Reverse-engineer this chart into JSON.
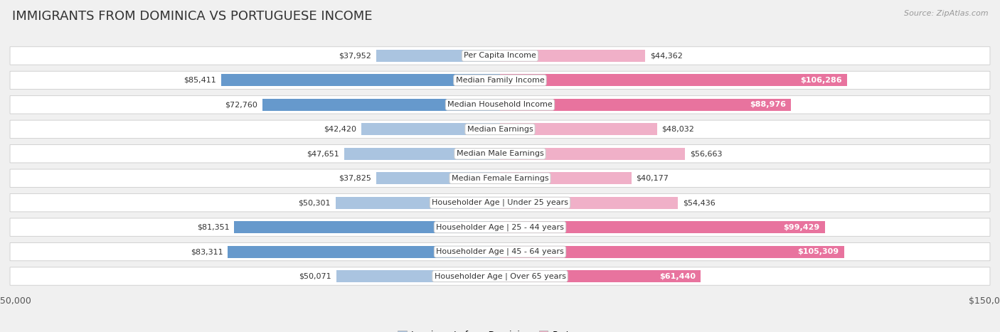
{
  "title": "IMMIGRANTS FROM DOMINICA VS PORTUGUESE INCOME",
  "source": "Source: ZipAtlas.com",
  "categories": [
    "Per Capita Income",
    "Median Family Income",
    "Median Household Income",
    "Median Earnings",
    "Median Male Earnings",
    "Median Female Earnings",
    "Householder Age | Under 25 years",
    "Householder Age | 25 - 44 years",
    "Householder Age | 45 - 64 years",
    "Householder Age | Over 65 years"
  ],
  "dominica_values": [
    37952,
    85411,
    72760,
    42420,
    47651,
    37825,
    50301,
    81351,
    83311,
    50071
  ],
  "portuguese_values": [
    44362,
    106286,
    88976,
    48032,
    56663,
    40177,
    54436,
    99429,
    105309,
    61440
  ],
  "dominica_color_dark": "#6699cc",
  "dominica_color_light": "#aac4e0",
  "portuguese_color_dark": "#e8739e",
  "portuguese_color_light": "#f0b0c8",
  "dom_dark_threshold": 60000,
  "por_dark_threshold": 60000,
  "max_value": 150000,
  "bg_color": "#f0f0f0",
  "row_bg": "#ffffff",
  "title_fontsize": 13,
  "source_fontsize": 8,
  "axis_label_fontsize": 9,
  "bar_label_fontsize": 8,
  "category_fontsize": 8
}
